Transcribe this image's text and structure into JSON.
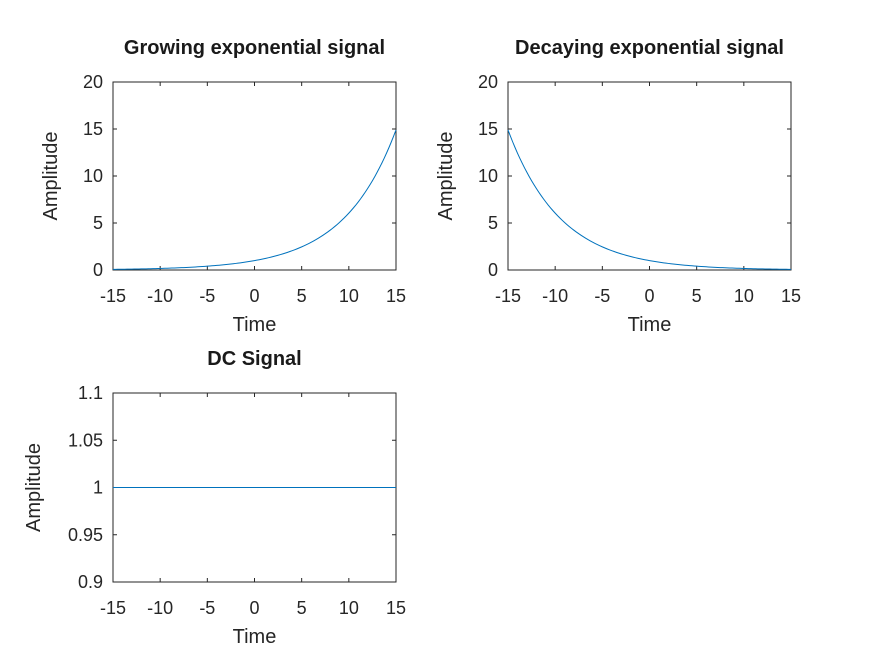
{
  "chart_data": [
    {
      "type": "line",
      "title": "Growing exponential signal",
      "xlabel": "Time",
      "ylabel": "Amplitude",
      "xlim": [
        -15,
        15
      ],
      "ylim": [
        0,
        20
      ],
      "x_ticks": [
        "-15",
        "-10",
        "-5",
        "0",
        "5",
        "10",
        "15"
      ],
      "y_ticks": [
        "0",
        "5",
        "10",
        "15",
        "20"
      ],
      "grid": false,
      "series": [
        {
          "color": "#0072bd",
          "x": [
            -15,
            -12.5,
            -10,
            -7.5,
            -5,
            -2.5,
            0,
            2.5,
            5,
            7.5,
            10,
            12.5,
            15
          ],
          "y": [
            0.067,
            0.105,
            0.165,
            0.259,
            0.407,
            0.638,
            1.0,
            1.57,
            2.46,
            3.86,
            6.05,
            9.5,
            14.9
          ]
        }
      ]
    },
    {
      "type": "line",
      "title": "Decaying exponential signal",
      "xlabel": "Time",
      "ylabel": "Amplitude",
      "xlim": [
        -15,
        15
      ],
      "ylim": [
        0,
        20
      ],
      "x_ticks": [
        "-15",
        "-10",
        "-5",
        "0",
        "5",
        "10",
        "15"
      ],
      "y_ticks": [
        "0",
        "5",
        "10",
        "15",
        "20"
      ],
      "grid": false,
      "series": [
        {
          "color": "#0072bd",
          "x": [
            -15,
            -12.5,
            -10,
            -7.5,
            -5,
            -2.5,
            0,
            2.5,
            5,
            7.5,
            10,
            12.5,
            15
          ],
          "y": [
            14.9,
            9.5,
            6.05,
            3.86,
            2.46,
            1.57,
            1.0,
            0.638,
            0.407,
            0.259,
            0.165,
            0.105,
            0.067
          ]
        }
      ]
    },
    {
      "type": "line",
      "title": "DC Signal",
      "xlabel": "Time",
      "ylabel": "Amplitude",
      "xlim": [
        -15,
        15
      ],
      "ylim": [
        0.9,
        1.1
      ],
      "x_ticks": [
        "-15",
        "-10",
        "-5",
        "0",
        "5",
        "10",
        "15"
      ],
      "y_ticks": [
        "0.9",
        "0.95",
        "1",
        "1.05",
        "1.1"
      ],
      "grid": false,
      "series": [
        {
          "color": "#0072bd",
          "x": [
            -15,
            15
          ],
          "y": [
            1,
            1
          ]
        }
      ]
    }
  ]
}
